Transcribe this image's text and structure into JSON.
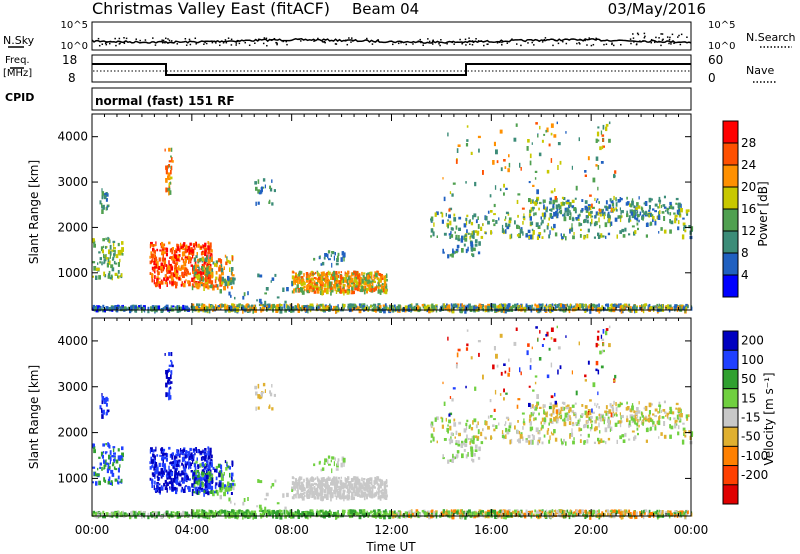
{
  "header": {
    "station": "Christmas Valley East (fitACF)",
    "beam": "Beam 04",
    "date": "03/May/2016"
  },
  "noise_panel": {
    "left_label": "N.Sky",
    "right_label": "N.Search",
    "left_ticks": [
      "10^5",
      "10^0"
    ],
    "right_ticks": [
      "10^5",
      "10^0"
    ]
  },
  "freq_panel": {
    "left_label_line1": "Freq.",
    "left_label_line2": "[MHz]",
    "right_label": "Nave",
    "left_ticks": [
      "18",
      "8"
    ],
    "right_ticks": [
      "60",
      "0"
    ]
  },
  "cpid_panel": {
    "label": "CPID",
    "program": "normal (fast) 151 RF"
  },
  "colors": {
    "power_scale": [
      "#0000ff",
      "#2060c0",
      "#3c8c78",
      "#50a050",
      "#c8c800",
      "#ff9000",
      "#ff5000",
      "#ff0000"
    ],
    "velocity_scale": [
      "#e00000",
      "#ff4000",
      "#ff8000",
      "#e0b030",
      "#c8c8c8",
      "#70d040",
      "#30a030",
      "#2040ff",
      "#0000c0"
    ]
  },
  "chart_data": [
    {
      "type": "heatmap",
      "title": "Power",
      "ylabel": "Slant Range [km]",
      "ylim": [
        180,
        4500
      ],
      "yticks": [
        "1000",
        "2000",
        "3000",
        "4000"
      ],
      "colorbar_label": "Power [dB]",
      "colorbar_ticks": [
        "4",
        "8",
        "12",
        "16",
        "20",
        "24",
        "28"
      ],
      "colorbar_range": [
        0,
        32
      ]
    },
    {
      "type": "heatmap",
      "title": "Velocity",
      "ylabel": "Slant Range [km]",
      "ylim": [
        180,
        4500
      ],
      "yticks": [
        "1000",
        "2000",
        "3000",
        "4000"
      ],
      "xlabel": "Time UT",
      "xticks": [
        "00:00",
        "04:00",
        "08:00",
        "12:00",
        "16:00",
        "20:00",
        "00:00"
      ],
      "colorbar_label": "Velocity [m s⁻¹]",
      "colorbar_ticks": [
        "200",
        "100",
        "50",
        "15",
        "-15",
        "-50",
        "-100",
        "-200"
      ]
    }
  ]
}
